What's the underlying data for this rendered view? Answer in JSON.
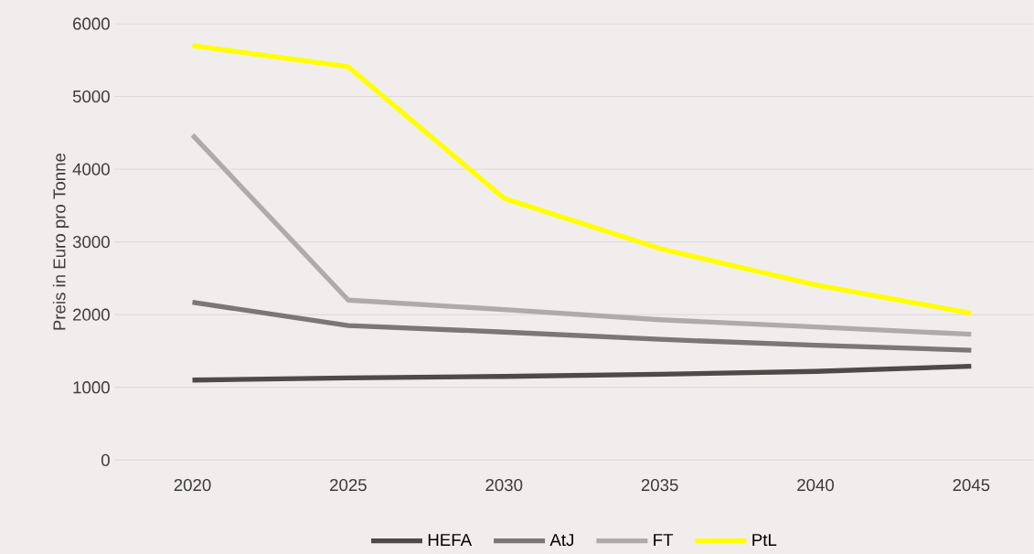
{
  "chart_data": {
    "type": "line",
    "ylabel": "Preis in Euro pro Tonne",
    "categories": [
      "2020",
      "2025",
      "2030",
      "2035",
      "2040",
      "2045"
    ],
    "series": [
      {
        "name": "HEFA",
        "color": "#4d4a48",
        "values": [
          1100,
          1130,
          1150,
          1180,
          1220,
          1290
        ]
      },
      {
        "name": "AtJ",
        "color": "#7a7776",
        "values": [
          2170,
          1850,
          1760,
          1660,
          1580,
          1510
        ]
      },
      {
        "name": "FT",
        "color": "#aeacab",
        "values": [
          4470,
          2200,
          2070,
          1930,
          1830,
          1730
        ]
      },
      {
        "name": "PtL",
        "color": "#ffff00",
        "values": [
          5700,
          5410,
          3600,
          2910,
          2410,
          2020
        ]
      }
    ],
    "ylim": [
      0,
      6000
    ],
    "yticks": [
      0,
      1000,
      2000,
      3000,
      4000,
      5000,
      6000
    ],
    "grid": "y",
    "legend": "bottom",
    "marker": "none",
    "line_style": "solid"
  }
}
